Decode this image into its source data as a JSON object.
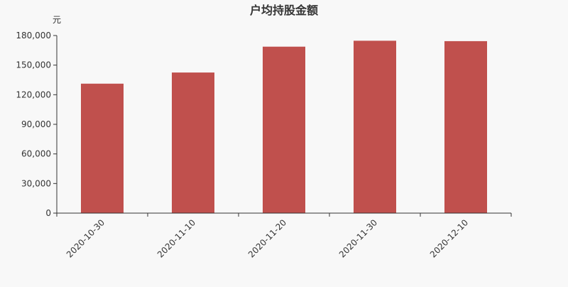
{
  "chart_data": {
    "type": "bar",
    "title": "户均持股金额",
    "ylabel": "元",
    "xlabel": "",
    "categories": [
      "2020-10-30",
      "2020-11-10",
      "2020-11-20",
      "2020-11-30",
      "2020-12-10"
    ],
    "values": [
      131200,
      142500,
      168700,
      174700,
      174300
    ],
    "ylim": [
      0,
      180000
    ],
    "yticks": [
      0,
      30000,
      60000,
      90000,
      120000,
      150000,
      180000
    ],
    "ytick_labels": [
      "0",
      "30,000",
      "60,000",
      "90,000",
      "120,000",
      "150,000",
      "180,000"
    ],
    "grid": false,
    "bar_color": "#c0504d"
  }
}
